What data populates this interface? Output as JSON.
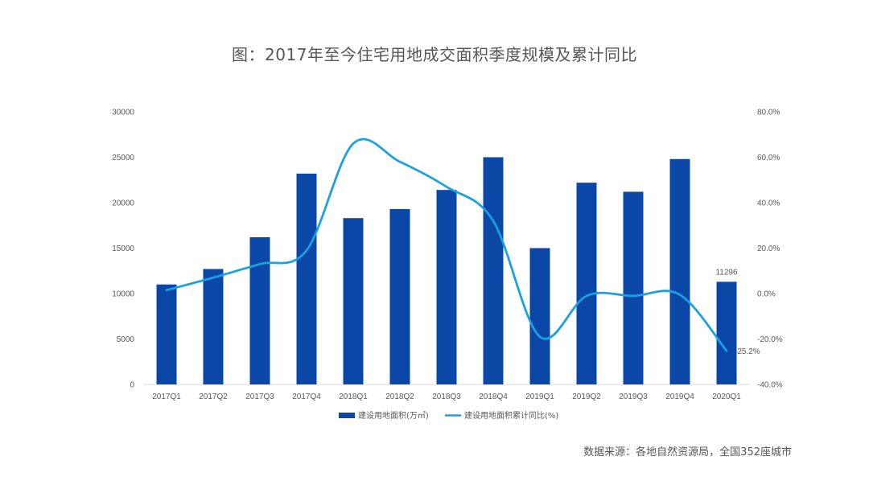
{
  "title": "图：2017年至今住宅用地成交面积季度规模及累计同比",
  "source": "数据来源：各地自然资源局，全国352座城市",
  "colors": {
    "bar": "#0a47a6",
    "line": "#1ba1e2",
    "text": "#595959",
    "axis": "#d9d9d9"
  },
  "chart_data": {
    "type": "bar",
    "categories": [
      "2017Q1",
      "2017Q2",
      "2017Q3",
      "2017Q4",
      "2018Q1",
      "2018Q2",
      "2018Q3",
      "2018Q4",
      "2019Q1",
      "2019Q2",
      "2019Q3",
      "2019Q4",
      "2020Q1"
    ],
    "series": [
      {
        "name": "建设用地面积(万㎡)",
        "type": "bar",
        "axis": "left",
        "values": [
          11000,
          12700,
          16200,
          23200,
          18300,
          19300,
          21400,
          25000,
          15000,
          22200,
          21200,
          24800,
          11296
        ]
      },
      {
        "name": "建设用地面积累计同比(%)",
        "type": "line",
        "axis": "right",
        "values": [
          1.5,
          7.0,
          13.0,
          19.0,
          66.0,
          58.0,
          47.0,
          32.0,
          -19.0,
          -1.0,
          -1.0,
          -0.5,
          -25.2
        ]
      }
    ],
    "y_left": {
      "min": 0,
      "max": 30000,
      "ticks": [
        "0",
        "5000",
        "10000",
        "15000",
        "20000",
        "25000",
        "30000"
      ]
    },
    "y_right": {
      "min": -40,
      "max": 80,
      "ticks": [
        "-40.0%",
        "-20.0%",
        "0.0%",
        "20.0%",
        "40.0%",
        "60.0%",
        "80.0%"
      ]
    },
    "data_labels": {
      "bar_last": "11296",
      "line_last": "-25.2%"
    },
    "legend": [
      "建设用地面积(万㎡)",
      "建设用地面积累计同比(%)"
    ],
    "legend_position": "bottom"
  }
}
